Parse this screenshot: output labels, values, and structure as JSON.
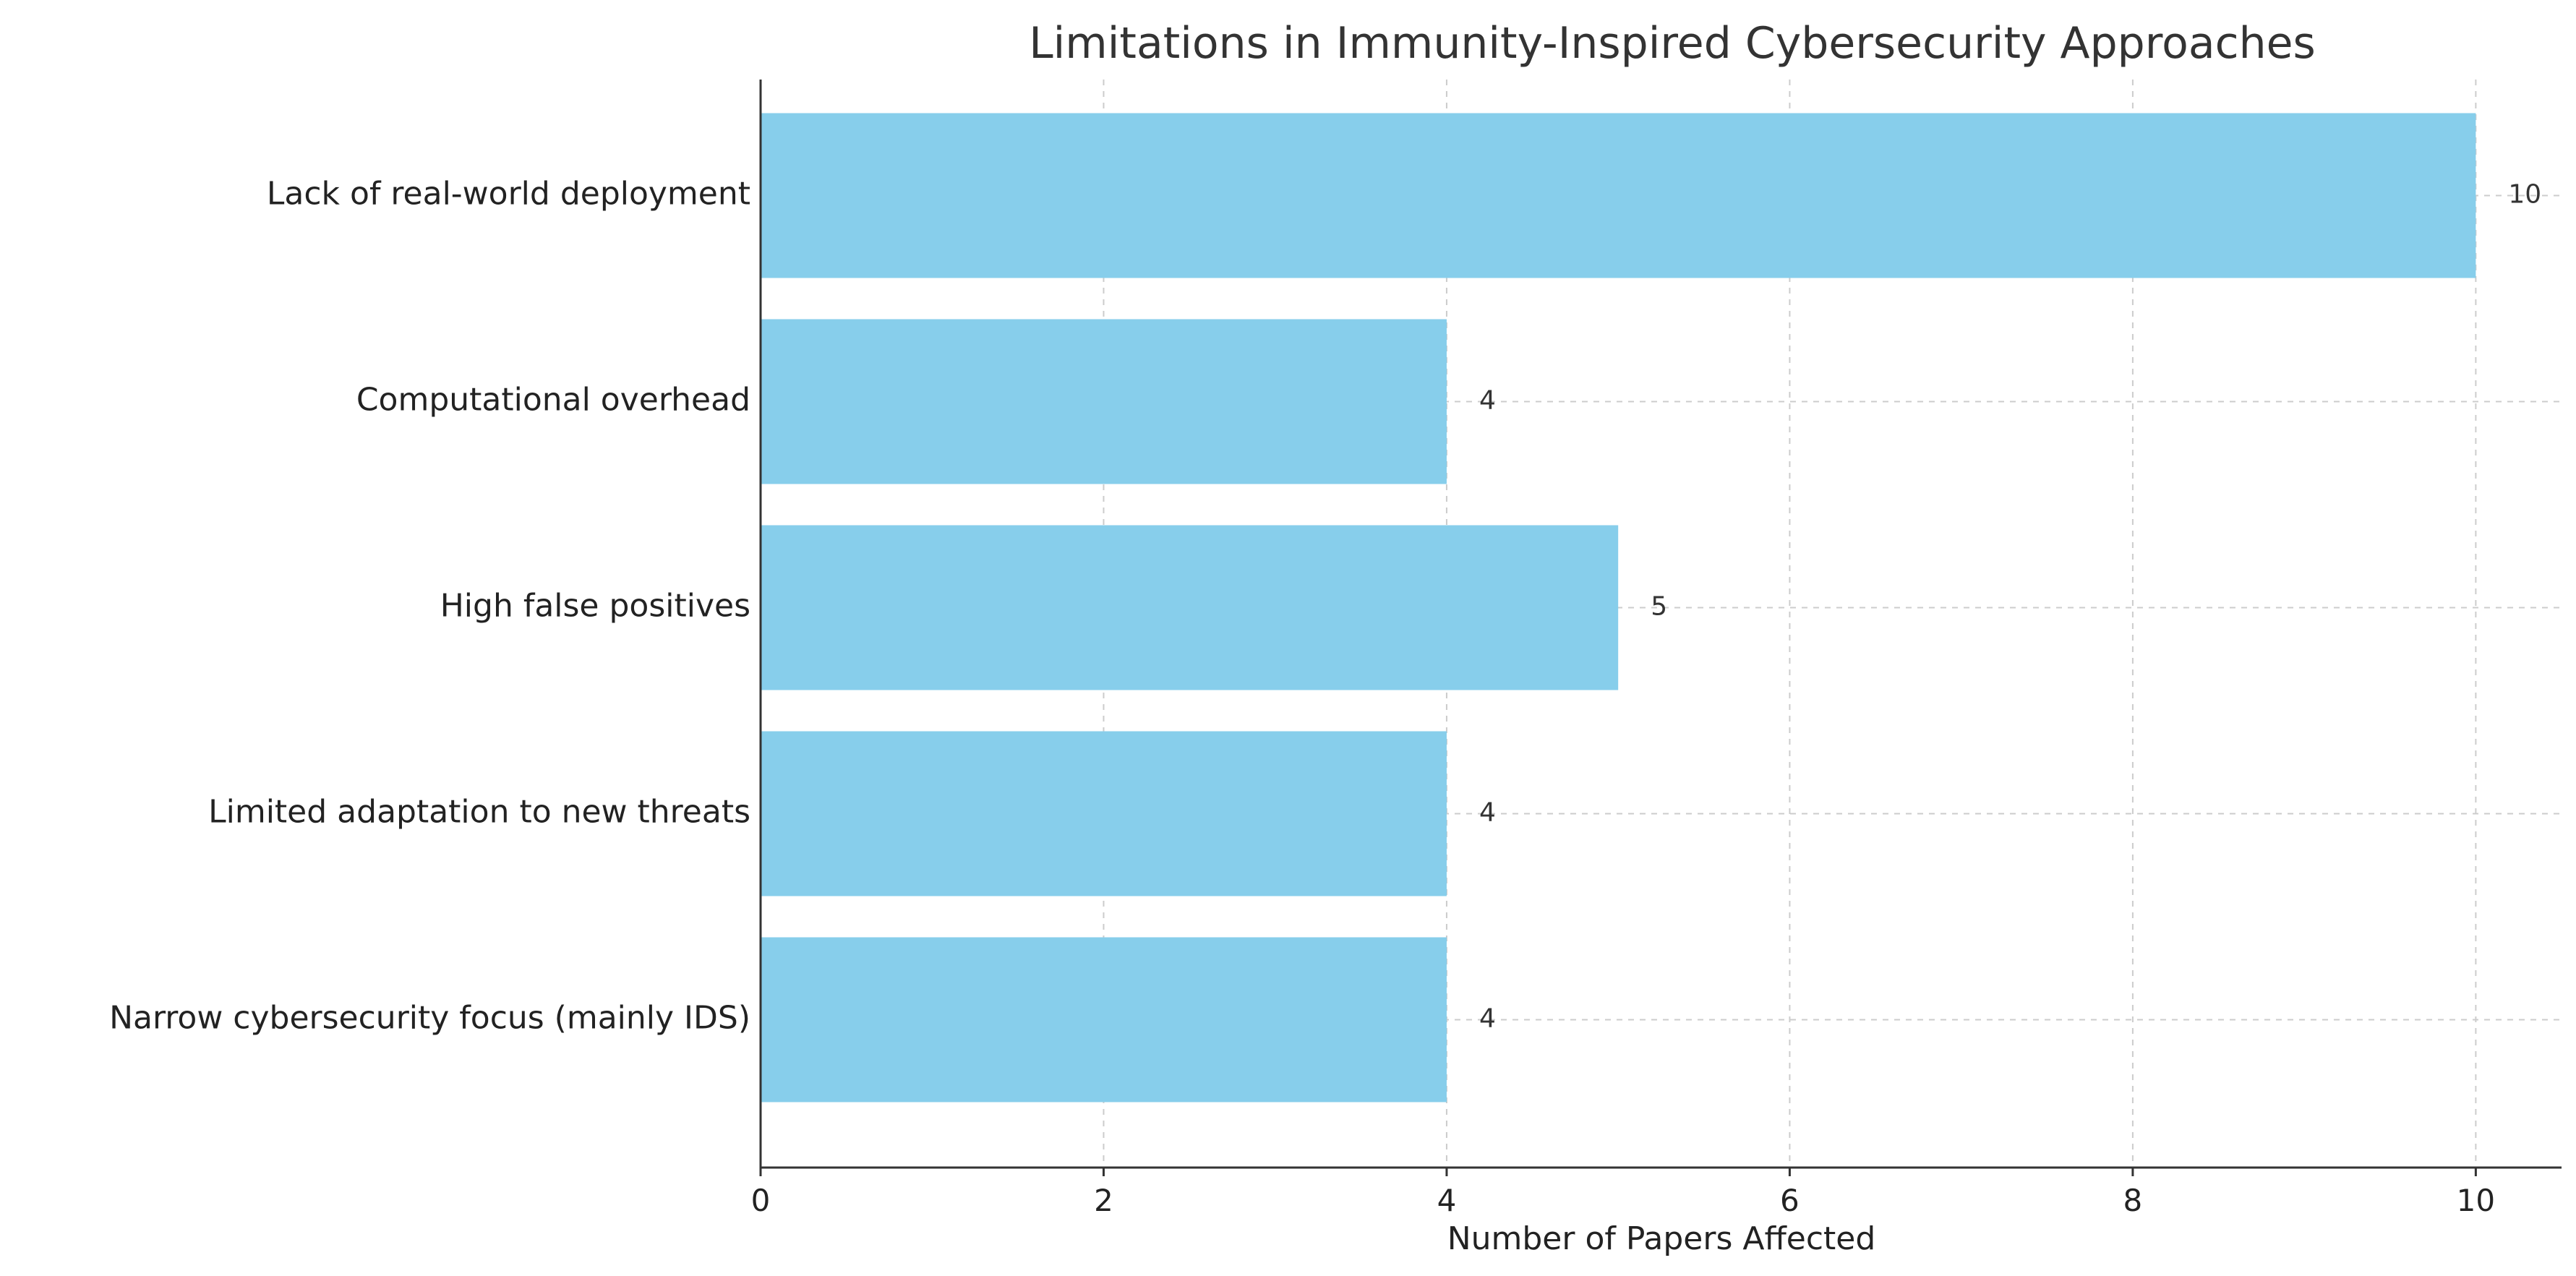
{
  "chart_data": {
    "type": "bar",
    "orientation": "horizontal",
    "title": "Limitations in Immunity-Inspired Cybersecurity Approaches",
    "xlabel": "Number of Papers Affected",
    "ylabel": "",
    "categories": [
      "Lack of real-world deployment",
      "Computational overhead",
      "High false positives",
      "Limited adaptation to new threats",
      "Narrow cybersecurity focus (mainly IDS)"
    ],
    "values": [
      10,
      4,
      5,
      4,
      4
    ],
    "value_labels": [
      "10",
      "4",
      "5",
      "4",
      "4"
    ],
    "xlim": [
      0,
      10.5
    ],
    "xticks": [
      0,
      2,
      4,
      6,
      8,
      10
    ],
    "xtick_labels": [
      "0",
      "2",
      "4",
      "6",
      "8",
      "10"
    ],
    "grid": true,
    "bar_color": "#87CEEB",
    "grid_color": "#cccccc",
    "axis_color": "#333333"
  }
}
